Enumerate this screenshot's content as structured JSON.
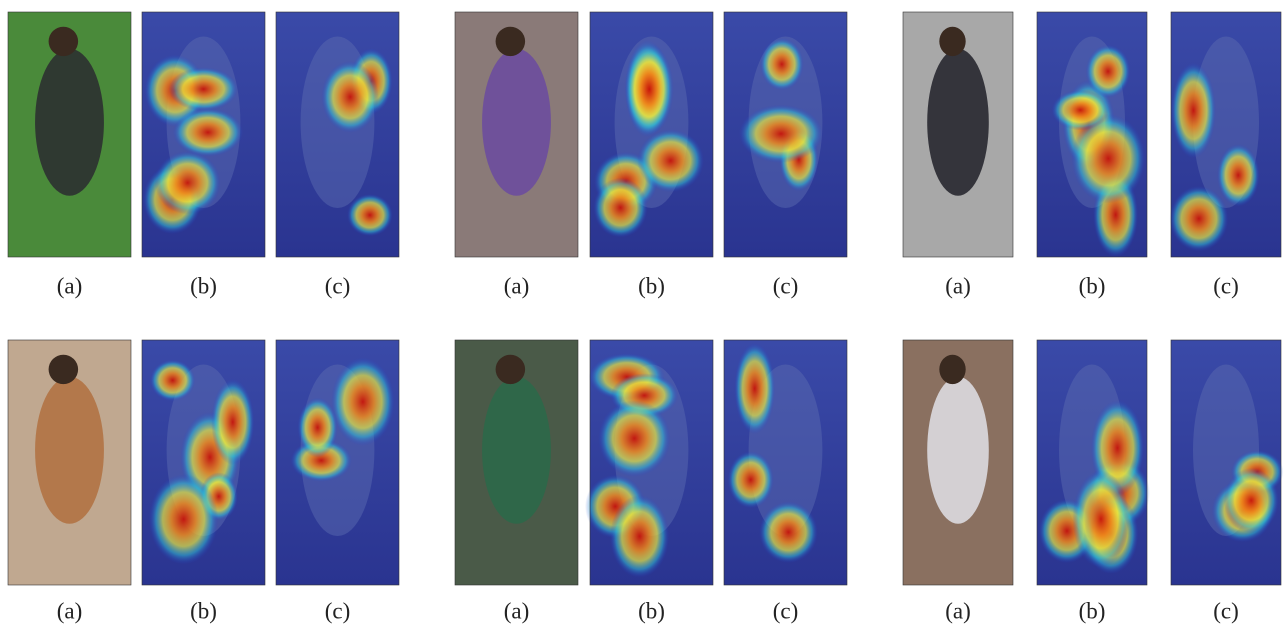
{
  "rows": [
    [
      [
        "(a)",
        "(b)",
        "(c)"
      ],
      [
        "(a)",
        "(b)",
        "(c)"
      ],
      [
        "(a)",
        "(b)",
        "(c)"
      ]
    ],
    [
      [
        "(a)",
        "(b)",
        "(c)"
      ],
      [
        "(a)",
        "(b)",
        "(c)"
      ],
      [
        "(a)",
        "(b)",
        "(c)"
      ]
    ]
  ]
}
